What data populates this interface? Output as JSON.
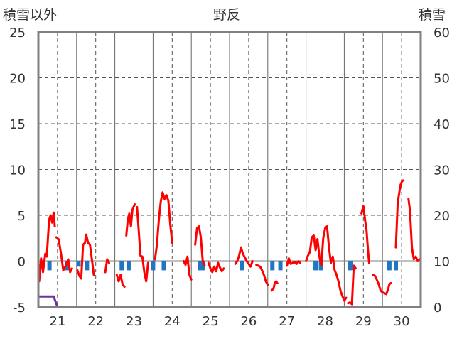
{
  "chart_data": {
    "type": "line",
    "title": "野反",
    "left_axis_label": "積雪以外",
    "right_axis_label": "積雪",
    "left_ylim": [
      -5,
      25
    ],
    "left_ticks": [
      "25",
      "20",
      "15",
      "10",
      "5",
      "0",
      "-5"
    ],
    "right_ylim": [
      0,
      60
    ],
    "right_ticks": [
      "60",
      "50",
      "40",
      "30",
      "20",
      "10",
      "0"
    ],
    "x_range": [
      20.5,
      30.5
    ],
    "x_ticks": [
      "21",
      "22",
      "23",
      "24",
      "25",
      "26",
      "27",
      "28",
      "29",
      "30"
    ],
    "grid": true,
    "colors": {
      "temperature": "#ff0000",
      "precipitation": "#1f77c4",
      "snow": "#7030a0",
      "zero_line": "#808080",
      "grid": "#555555",
      "frame": "#808080"
    },
    "series": [
      {
        "kind": "temperature",
        "axis": "left",
        "segments": [
          [
            [
              20.52,
              -2.2
            ],
            [
              20.57,
              0.3
            ],
            [
              20.62,
              -1.2
            ],
            [
              20.68,
              0.8
            ],
            [
              20.72,
              0.5
            ],
            [
              20.78,
              4.5
            ],
            [
              20.82,
              5.0
            ],
            [
              20.86,
              4.2
            ],
            [
              20.9,
              5.3
            ],
            [
              20.93,
              3.8
            ]
          ],
          [
            [
              20.97,
              2.6
            ],
            [
              21.03,
              2.4
            ],
            [
              21.1,
              0.6
            ],
            [
              21.15,
              -1.0
            ],
            [
              21.22,
              -0.5
            ],
            [
              21.28,
              0.2
            ],
            [
              21.33,
              -1.2
            ],
            [
              21.38,
              -0.8
            ]
          ],
          [
            [
              21.52,
              -1.0
            ],
            [
              21.57,
              -1.6
            ],
            [
              21.62,
              -1.9
            ],
            [
              21.67,
              1.8
            ],
            [
              21.72,
              2.0
            ],
            [
              21.75,
              2.9
            ],
            [
              21.8,
              2.0
            ],
            [
              21.85,
              1.8
            ],
            [
              21.9,
              0.2
            ],
            [
              21.95,
              -1.5
            ]
          ],
          [
            [
              22.25,
              -1.2
            ],
            [
              22.3,
              0.2
            ],
            [
              22.35,
              -0.2
            ]
          ],
          [
            [
              22.55,
              -1.5
            ],
            [
              22.6,
              -2.2
            ],
            [
              22.65,
              -1.5
            ],
            [
              22.7,
              -2.5
            ],
            [
              22.75,
              -2.8
            ]
          ],
          [
            [
              22.8,
              2.8
            ],
            [
              22.84,
              4.6
            ],
            [
              22.88,
              5.2
            ],
            [
              22.92,
              3.8
            ],
            [
              22.96,
              5.6
            ],
            [
              23.02,
              6.2
            ]
          ],
          [
            [
              23.08,
              5.9
            ],
            [
              23.13,
              3.0
            ],
            [
              23.17,
              0.6
            ],
            [
              23.22,
              0.5
            ],
            [
              23.27,
              -1.2
            ],
            [
              23.32,
              -2.2
            ],
            [
              23.37,
              -0.2
            ]
          ],
          [
            [
              23.55,
              0.2
            ],
            [
              23.6,
              1.8
            ],
            [
              23.65,
              4.5
            ],
            [
              23.7,
              6.5
            ],
            [
              23.75,
              7.5
            ],
            [
              23.8,
              6.8
            ],
            [
              23.85,
              7.2
            ],
            [
              23.9,
              6.6
            ],
            [
              23.95,
              4.0
            ],
            [
              24.0,
              2.0
            ]
          ],
          [
            [
              24.3,
              0.0
            ],
            [
              24.35,
              -0.4
            ],
            [
              24.4,
              0.5
            ],
            [
              24.45,
              -1.5
            ],
            [
              24.5,
              -2.0
            ]
          ],
          [
            [
              24.6,
              1.8
            ],
            [
              24.65,
              3.6
            ],
            [
              24.7,
              3.8
            ],
            [
              24.75,
              2.6
            ],
            [
              24.8,
              0.0
            ],
            [
              24.85,
              -0.5
            ]
          ],
          [
            [
              24.95,
              -0.2
            ],
            [
              25.0,
              -0.8
            ],
            [
              25.05,
              -1.2
            ],
            [
              25.1,
              -0.6
            ],
            [
              25.15,
              -1.1
            ],
            [
              25.2,
              -0.2
            ],
            [
              25.25,
              -0.7
            ],
            [
              25.3,
              -1.1
            ],
            [
              25.35,
              -0.8
            ]
          ],
          [
            [
              25.65,
              -0.3
            ],
            [
              25.7,
              0.0
            ],
            [
              25.75,
              0.6
            ],
            [
              25.8,
              1.5
            ],
            [
              25.85,
              0.8
            ],
            [
              25.9,
              0.4
            ],
            [
              25.95,
              0.0
            ],
            [
              26.0,
              -0.3
            ],
            [
              26.05,
              -0.6
            ],
            [
              26.1,
              0.0
            ]
          ],
          [
            [
              26.2,
              -0.4
            ],
            [
              26.25,
              -0.5
            ],
            [
              26.3,
              -0.6
            ],
            [
              26.35,
              -1.0
            ],
            [
              26.4,
              -1.5
            ],
            [
              26.45,
              -2.2
            ],
            [
              26.5,
              -2.6
            ]
          ],
          [
            [
              26.6,
              -3.2
            ],
            [
              26.65,
              -3.0
            ],
            [
              26.68,
              -2.4
            ],
            [
              26.72,
              -2.2
            ],
            [
              26.75,
              -2.4
            ]
          ],
          [
            [
              27.0,
              -0.5
            ],
            [
              27.05,
              0.3
            ],
            [
              27.1,
              -0.3
            ],
            [
              27.15,
              -0.2
            ],
            [
              27.2,
              -0.1
            ],
            [
              27.25,
              -0.3
            ],
            [
              27.3,
              0.0
            ],
            [
              27.35,
              -0.2
            ]
          ],
          [
            [
              27.5,
              0.0
            ],
            [
              27.55,
              0.6
            ],
            [
              27.6,
              1.0
            ],
            [
              27.65,
              2.6
            ],
            [
              27.7,
              2.8
            ],
            [
              27.75,
              1.2
            ],
            [
              27.8,
              2.4
            ],
            [
              27.85,
              0.5
            ],
            [
              27.9,
              -0.5
            ],
            [
              27.95,
              2.5
            ],
            [
              28.0,
              3.6
            ],
            [
              28.05,
              3.8
            ],
            [
              28.1,
              1.5
            ],
            [
              28.15,
              -0.2
            ],
            [
              28.2,
              0.5
            ],
            [
              28.25,
              -1.0
            ],
            [
              28.3,
              -1.5
            ],
            [
              28.35,
              -2.2
            ],
            [
              28.4,
              -3.2
            ],
            [
              28.45,
              -3.8
            ],
            [
              28.5,
              -4.3
            ],
            [
              28.55,
              -4.0
            ]
          ],
          [
            [
              28.6,
              -4.6
            ],
            [
              28.65,
              -4.5
            ],
            [
              28.7,
              -4.7
            ],
            [
              28.75,
              -0.5
            ],
            [
              28.8,
              -0.8
            ]
          ],
          [
            [
              28.95,
              5.2
            ],
            [
              29.0,
              6.0
            ],
            [
              29.05,
              4.3
            ],
            [
              29.08,
              3.5
            ],
            [
              29.12,
              1.2
            ],
            [
              29.15,
              -0.2
            ]
          ],
          [
            [
              29.25,
              -1.5
            ],
            [
              29.3,
              -1.6
            ],
            [
              29.35,
              -2.0
            ],
            [
              29.4,
              -2.5
            ],
            [
              29.45,
              -3.2
            ],
            [
              29.5,
              -3.4
            ],
            [
              29.55,
              -3.5
            ],
            [
              29.6,
              -3.6
            ],
            [
              29.65,
              -3.0
            ],
            [
              29.68,
              -2.5
            ],
            [
              29.72,
              -2.4
            ]
          ],
          [
            [
              29.85,
              1.5
            ],
            [
              29.9,
              6.5
            ],
            [
              29.93,
              7.2
            ],
            [
              29.97,
              8.3
            ],
            [
              30.02,
              8.8
            ],
            [
              30.05,
              8.8
            ]
          ],
          [
            [
              30.18,
              6.8
            ],
            [
              30.22,
              5.5
            ],
            [
              30.27,
              1.5
            ],
            [
              30.32,
              0.2
            ],
            [
              30.37,
              0.5
            ],
            [
              30.42,
              0.0
            ],
            [
              30.47,
              0.2
            ]
          ]
        ]
      },
      {
        "kind": "precipitation",
        "axis": "left",
        "points": [
          [
            20.79,
            -1.0
          ],
          [
            21.26,
            -1.0
          ],
          [
            21.55,
            -0.6
          ],
          [
            21.77,
            -1.0
          ],
          [
            22.68,
            -1.0
          ],
          [
            22.86,
            -1.0
          ],
          [
            23.5,
            -1.0
          ],
          [
            23.78,
            -1.0
          ],
          [
            24.72,
            -1.0
          ],
          [
            24.81,
            -1.0
          ],
          [
            25.83,
            -1.0
          ],
          [
            26.62,
            -1.0
          ],
          [
            26.83,
            -1.0
          ],
          [
            27.75,
            -1.0
          ],
          [
            27.89,
            -1.0
          ],
          [
            28.66,
            -1.0
          ],
          [
            29.68,
            -1.0
          ],
          [
            29.85,
            -1.0
          ]
        ]
      },
      {
        "kind": "snow",
        "axis": "right",
        "points": [
          [
            20.5,
            2.3
          ],
          [
            20.9,
            2.3
          ],
          [
            21.0,
            0.0
          ],
          [
            30.5,
            0.0
          ]
        ]
      }
    ]
  }
}
